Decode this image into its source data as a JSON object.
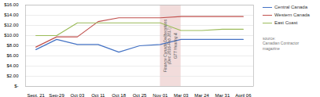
{
  "chart_data": {
    "type": "line",
    "categories": [
      "Sept. 21",
      "Sep-29",
      "Oct 03",
      "Oct 11",
      "Oct 18",
      "Oct 25",
      "Nov 01",
      "Mar 03",
      "Mar 24",
      "Mar 31",
      "April 06"
    ],
    "series": [
      {
        "name": "Central Canada",
        "color": "#4472c4",
        "values": [
          7.25,
          9.25,
          8.25,
          8.25,
          6.75,
          8.0,
          8.25,
          9.25,
          9.25,
          9.25,
          9.25
        ]
      },
      {
        "name": "Western Canada",
        "color": "#c0504d",
        "values": [
          7.75,
          9.75,
          9.75,
          12.75,
          13.5,
          13.5,
          13.5,
          13.75,
          13.75,
          13.75,
          13.75
        ]
      },
      {
        "name": "East Coast",
        "color": "#9bbb59",
        "values": [
          10.0,
          10.0,
          12.5,
          12.5,
          12.5,
          12.5,
          12.5,
          11.0,
          11.0,
          11.25,
          11.25
        ]
      }
    ],
    "ylim": [
      0,
      16
    ],
    "yticks": [
      {
        "value": 0,
        "label": "$-"
      },
      {
        "value": 2,
        "label": "$2.00"
      },
      {
        "value": 4,
        "label": "$4.00"
      },
      {
        "value": 6,
        "label": "$6.00"
      },
      {
        "value": 8,
        "label": "$8.00"
      },
      {
        "value": 10,
        "label": "$10.00"
      },
      {
        "value": 12,
        "label": "$12.00"
      },
      {
        "value": 14,
        "label": "$14.00"
      },
      {
        "value": 16,
        "label": "$16.00"
      }
    ],
    "grid": true,
    "legend": "right",
    "shade": {
      "from": "Nov 01",
      "to": "Mar 03",
      "color": "#f2dcdb"
    },
    "annotations": [
      "GTT Hearing &",
      "Finance Canada Deliberations\n(Dec 2016-Feb 2017)"
    ],
    "source": "source:\nCanadian Contractor\nmagazine"
  }
}
